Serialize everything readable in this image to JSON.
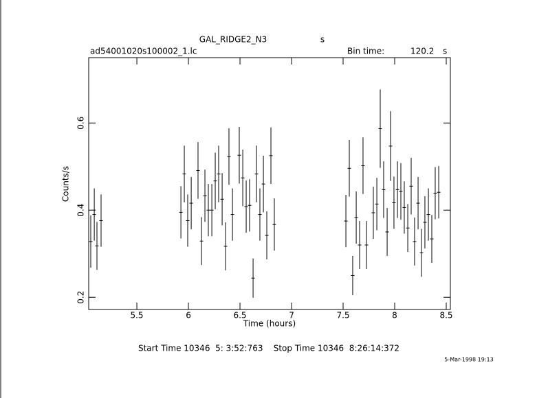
{
  "chart_data": {
    "type": "errorbar",
    "title": "GAL_RIDGE2_N3",
    "title_unit": "s",
    "file_name": "ad54001020s100002_1.lc",
    "bin_time_label": "Bin time:",
    "bin_time": 120.2,
    "bin_time_unit": "s",
    "x_label": "Time (hours)",
    "y_label": "Counts/s",
    "footer": "Start Time 10346  5: 3:52:763    Stop Time 10346  8:26:14:372",
    "date": "5-Mar-1998 19:13",
    "color": "#000000",
    "xlim": [
      5.033,
      8.54
    ],
    "ylim": [
      0.172,
      0.75
    ],
    "xticks": [
      5.5,
      6,
      6.5,
      7,
      7.5,
      8,
      8.5
    ],
    "yticks": [
      0.2,
      0.4,
      0.6
    ],
    "x": [
      5.053,
      5.087,
      5.113,
      5.153,
      5.927,
      5.96,
      5.993,
      6.027,
      6.093,
      6.127,
      6.16,
      6.193,
      6.227,
      6.26,
      6.293,
      6.327,
      6.36,
      6.393,
      6.427,
      6.493,
      6.527,
      6.56,
      6.593,
      6.627,
      6.66,
      6.693,
      6.727,
      6.76,
      6.8,
      6.833,
      7.527,
      7.56,
      7.593,
      7.627,
      7.66,
      7.693,
      7.727,
      7.793,
      7.827,
      7.86,
      7.893,
      7.927,
      7.96,
      7.993,
      8.027,
      8.06,
      8.093,
      8.127,
      8.16,
      8.193,
      8.227,
      8.26,
      8.293,
      8.327,
      8.36,
      8.393,
      8.427
    ],
    "values": [
      0.328,
      0.39,
      0.318,
      0.376,
      0.395,
      0.483,
      0.376,
      0.416,
      0.491,
      0.329,
      0.433,
      0.4,
      0.4,
      0.467,
      0.483,
      0.425,
      0.317,
      0.523,
      0.39,
      0.526,
      0.474,
      0.408,
      0.411,
      0.244,
      0.483,
      0.39,
      0.46,
      0.342,
      0.525,
      0.367,
      0.375,
      0.496,
      0.25,
      0.383,
      0.32,
      0.502,
      0.32,
      0.394,
      0.414,
      0.587,
      0.447,
      0.35,
      0.547,
      0.417,
      0.447,
      0.443,
      0.406,
      0.359,
      0.455,
      0.328,
      0.416,
      0.302,
      0.372,
      0.39,
      0.334,
      0.439,
      0.441
    ],
    "errors": [
      0.06,
      0.06,
      0.055,
      0.06,
      0.06,
      0.065,
      0.06,
      0.06,
      0.065,
      0.055,
      0.06,
      0.06,
      0.06,
      0.065,
      0.065,
      0.06,
      0.055,
      0.065,
      0.06,
      0.065,
      0.065,
      0.06,
      0.06,
      0.045,
      0.065,
      0.06,
      0.065,
      0.055,
      0.065,
      0.06,
      0.06,
      0.065,
      0.045,
      0.06,
      0.055,
      0.065,
      0.055,
      0.06,
      0.06,
      0.09,
      0.065,
      0.055,
      0.08,
      0.06,
      0.065,
      0.065,
      0.06,
      0.055,
      0.065,
      0.055,
      0.06,
      0.055,
      0.06,
      0.06,
      0.055,
      0.06,
      0.06
    ]
  }
}
